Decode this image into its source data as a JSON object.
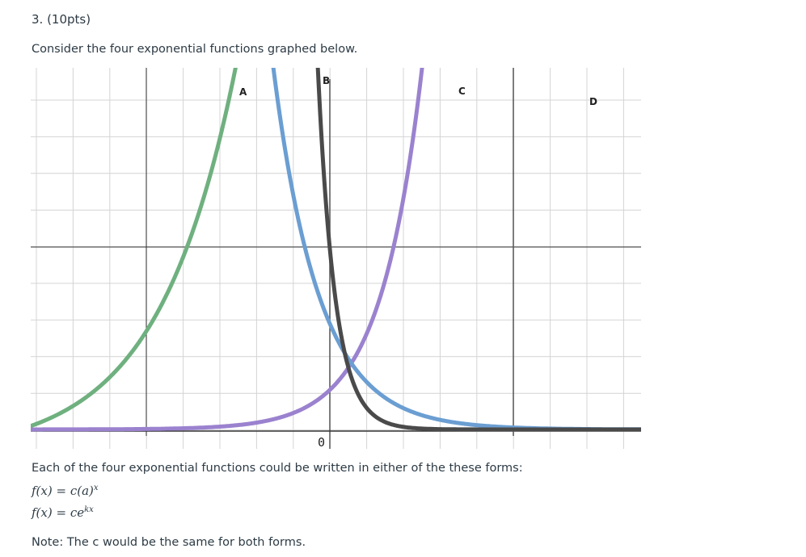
{
  "question": {
    "number_label": "3. (10pts)",
    "intro": "Consider the four exponential functions graphed below.",
    "forms_intro": "Each of the four exponential functions could be written in either of the these forms:",
    "formula_1": {
      "lhs": "f(x) = c(a)",
      "exp": "x"
    },
    "formula_2": {
      "lhs": "f(x)  =  ce",
      "exp": "kx"
    },
    "note": "Note:  The c would be the same for both forms."
  },
  "graph": {
    "origin_label": "0",
    "curve_labels": [
      "A",
      "B",
      "C",
      "D"
    ],
    "colors": {
      "A": "#6b9ed2",
      "B": "#4a4a4a",
      "C": "#9b82cf",
      "D": "#6fb07f",
      "grid": "#d4d4d4",
      "axis": "#555555"
    }
  }
}
